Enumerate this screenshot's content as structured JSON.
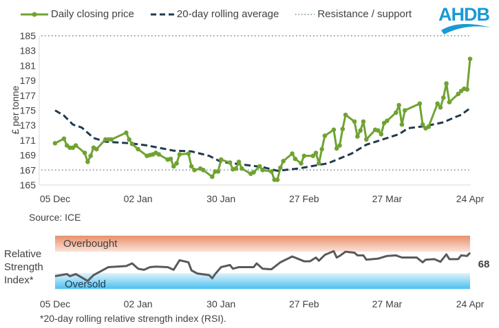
{
  "legend": {
    "price": "Daily closing price",
    "average": "20-day rolling average",
    "guide": "Resistance / support"
  },
  "logo": "AHDB",
  "colors": {
    "price": "#70a232",
    "average": "#1f3a4d",
    "guide": "#8aa0aa",
    "rsi": "#595959",
    "overbought": "#e8906a",
    "oversold": "#4cc0f0"
  },
  "chart_data": [
    {
      "type": "line",
      "ylabel": "£ per tonne",
      "ylim": [
        165,
        185
      ],
      "yticks": [
        165,
        167,
        169,
        171,
        173,
        175,
        177,
        179,
        181,
        183,
        185
      ],
      "xticks": [
        "05 Dec",
        "02 Jan",
        "30 Jan",
        "27 Feb",
        "27 Mar",
        "24 Apr"
      ],
      "source": "Source: ICE",
      "grid": false,
      "legend_position": "top",
      "guides": [
        185,
        167
      ],
      "series": [
        {
          "name": "Daily closing price",
          "style": "solid-markers",
          "points": [
            [
              "05 Dec",
              170.6
            ],
            [
              "08 Dec",
              171.2
            ],
            [
              "09 Dec",
              170.3
            ],
            [
              "10 Dec",
              170.0
            ],
            [
              "11 Dec",
              170.0
            ],
            [
              "12 Dec",
              170.3
            ],
            [
              "15 Dec",
              169.3
            ],
            [
              "16 Dec",
              168.1
            ],
            [
              "17 Dec",
              168.9
            ],
            [
              "18 Dec",
              170.0
            ],
            [
              "19 Dec",
              169.8
            ],
            [
              "22 Dec",
              171.1
            ],
            [
              "23 Dec",
              171.1
            ],
            [
              "24 Dec",
              171.1
            ],
            [
              "29 Dec",
              172.0
            ],
            [
              "30 Dec",
              171.1
            ],
            [
              "31 Dec",
              170.5
            ],
            [
              "02 Jan",
              169.8
            ],
            [
              "05 Jan",
              168.9
            ],
            [
              "06 Jan",
              169.0
            ],
            [
              "07 Jan",
              169.1
            ],
            [
              "08 Jan",
              169.3
            ],
            [
              "09 Jan",
              169.1
            ],
            [
              "12 Jan",
              168.4
            ],
            [
              "13 Jan",
              168.5
            ],
            [
              "14 Jan",
              167.5
            ],
            [
              "15 Jan",
              167.9
            ],
            [
              "16 Jan",
              169.1
            ],
            [
              "19 Jan",
              169.2
            ],
            [
              "20 Jan",
              167.5
            ],
            [
              "21 Jan",
              167.0
            ],
            [
              "23 Jan",
              167.2
            ],
            [
              "24 Jan",
              167.0
            ],
            [
              "27 Jan",
              166.1
            ],
            [
              "28 Jan",
              166.8
            ],
            [
              "29 Jan",
              166.8
            ],
            [
              "30 Jan",
              168.4
            ],
            [
              "02 Feb",
              168.0
            ],
            [
              "03 Feb",
              167.1
            ],
            [
              "04 Feb",
              167.2
            ],
            [
              "05 Feb",
              168.1
            ],
            [
              "06 Feb",
              167.2
            ],
            [
              "09 Feb",
              166.5
            ],
            [
              "10 Feb",
              166.7
            ],
            [
              "12 Feb",
              167.5
            ],
            [
              "13 Feb",
              167.0
            ],
            [
              "16 Feb",
              166.8
            ],
            [
              "17 Feb",
              165.7
            ],
            [
              "18 Feb",
              165.7
            ],
            [
              "19 Feb",
              167.3
            ],
            [
              "20 Feb",
              168.2
            ],
            [
              "23 Feb",
              169.2
            ],
            [
              "24 Feb",
              168.5
            ],
            [
              "26 Feb",
              167.9
            ],
            [
              "27 Feb",
              168.9
            ],
            [
              "02 Mar",
              168.9
            ],
            [
              "03 Mar",
              169.3
            ],
            [
              "04 Mar",
              167.9
            ],
            [
              "05 Mar",
              169.8
            ],
            [
              "06 Mar",
              171.6
            ],
            [
              "09 Mar",
              172.4
            ],
            [
              "10 Mar",
              169.9
            ],
            [
              "11 Mar",
              170.3
            ],
            [
              "12 Mar",
              172.5
            ],
            [
              "13 Mar",
              174.4
            ],
            [
              "16 Mar",
              173.5
            ],
            [
              "17 Mar",
              171.5
            ],
            [
              "18 Mar",
              172.3
            ],
            [
              "19 Mar",
              173.5
            ],
            [
              "20 Mar",
              171.1
            ],
            [
              "23 Mar",
              172.4
            ],
            [
              "24 Mar",
              172.3
            ],
            [
              "25 Mar",
              171.8
            ],
            [
              "26 Mar",
              173.3
            ],
            [
              "27 Mar",
              173.6
            ],
            [
              "30 Mar",
              174.7
            ],
            [
              "31 Mar",
              175.7
            ],
            [
              "01 Apr",
              173.1
            ],
            [
              "02 Apr",
              175.0
            ],
            [
              "07 Apr",
              175.9
            ],
            [
              "08 Apr",
              173.1
            ],
            [
              "09 Apr",
              172.6
            ],
            [
              "10 Apr",
              172.8
            ],
            [
              "13 Apr",
              175.9
            ],
            [
              "14 Apr",
              175.4
            ],
            [
              "15 Apr",
              176.7
            ],
            [
              "16 Apr",
              178.6
            ],
            [
              "17 Apr",
              176.1
            ],
            [
              "20 Apr",
              177.2
            ],
            [
              "21 Apr",
              177.6
            ],
            [
              "22 Apr",
              177.9
            ],
            [
              "23 Apr",
              177.8
            ],
            [
              "24 Apr",
              181.9
            ]
          ]
        },
        {
          "name": "20-day rolling average",
          "style": "dashed",
          "points": [
            [
              "05 Dec",
              175.0
            ],
            [
              "08 Dec",
              174.3
            ],
            [
              "11 Dec",
              173.1
            ],
            [
              "14 Dec",
              172.7
            ],
            [
              "18 Dec",
              171.3
            ],
            [
              "22 Dec",
              170.8
            ],
            [
              "30 Dec",
              170.6
            ],
            [
              "05 Jan",
              170.3
            ],
            [
              "14 Jan",
              169.6
            ],
            [
              "20 Jan",
              169.5
            ],
            [
              "26 Jan",
              168.9
            ],
            [
              "30 Jan",
              168.1
            ],
            [
              "07 Feb",
              167.7
            ],
            [
              "13 Feb",
              167.4
            ],
            [
              "18 Feb",
              166.9
            ],
            [
              "25 Feb",
              167.2
            ],
            [
              "07 Mar",
              167.9
            ],
            [
              "15 Mar",
              169.2
            ],
            [
              "20 Mar",
              170.4
            ],
            [
              "31 Mar",
              171.8
            ],
            [
              "03 Apr",
              172.6
            ],
            [
              "09 Apr",
              172.9
            ],
            [
              "15 Apr",
              173.4
            ],
            [
              "19 Apr",
              174.1
            ],
            [
              "21 Apr",
              174.4
            ],
            [
              "24 Apr",
              175.3
            ]
          ]
        }
      ]
    },
    {
      "type": "line",
      "ylabel": "Relative Strength Index*",
      "ylim": [
        0,
        100
      ],
      "xticks": [
        "05 Dec",
        "02 Jan",
        "30 Jan",
        "27 Feb",
        "27 Mar",
        "24 Apr"
      ],
      "bands": [
        {
          "label": "Overbought",
          "from": 70,
          "to": 100
        },
        {
          "label": "Oversold",
          "from": 0,
          "to": 30
        }
      ],
      "last_value_label": "68",
      "footnote": "*20-day rolling relative strength index (RSI).",
      "series": [
        {
          "points": [
            [
              "05 Dec",
              24
            ],
            [
              "09 Dec",
              28
            ],
            [
              "10 Dec",
              24
            ],
            [
              "12 Dec",
              28
            ],
            [
              "16 Dec",
              15
            ],
            [
              "18 Dec",
              26
            ],
            [
              "23 Dec",
              41
            ],
            [
              "29 Dec",
              43
            ],
            [
              "31 Dec",
              48
            ],
            [
              "02 Jan",
              38
            ],
            [
              "04 Jan",
              36
            ],
            [
              "06 Jan",
              41
            ],
            [
              "08 Jan",
              42
            ],
            [
              "12 Jan",
              41
            ],
            [
              "14 Jan",
              36
            ],
            [
              "16 Jan",
              54
            ],
            [
              "19 Jan",
              50
            ],
            [
              "20 Jan",
              35
            ],
            [
              "22 Jan",
              29
            ],
            [
              "26 Jan",
              26
            ],
            [
              "27 Jan",
              20
            ],
            [
              "28 Jan",
              28
            ],
            [
              "30 Jan",
              41
            ],
            [
              "02 Feb",
              45
            ],
            [
              "03 Feb",
              38
            ],
            [
              "05 Feb",
              41
            ],
            [
              "10 Feb",
              41
            ],
            [
              "11 Feb",
              48
            ],
            [
              "13 Feb",
              38
            ],
            [
              "16 Feb",
              37
            ],
            [
              "19 Feb",
              50
            ],
            [
              "23 Feb",
              61
            ],
            [
              "27 Feb",
              52
            ],
            [
              "01 Mar",
              52
            ],
            [
              "03 Mar",
              59
            ],
            [
              "04 Mar",
              53
            ],
            [
              "06 Mar",
              64
            ],
            [
              "09 Mar",
              71
            ],
            [
              "10 Mar",
              59
            ],
            [
              "11 Mar",
              62
            ],
            [
              "13 Mar",
              70
            ],
            [
              "16 Mar",
              68
            ],
            [
              "17 Mar",
              63
            ],
            [
              "19 Mar",
              63
            ],
            [
              "20 Mar",
              55
            ],
            [
              "24 Mar",
              57
            ],
            [
              "27 Mar",
              62
            ],
            [
              "30 Mar",
              63
            ],
            [
              "01 Apr",
              59
            ],
            [
              "06 Apr",
              59
            ],
            [
              "08 Apr",
              50
            ],
            [
              "09 Apr",
              55
            ],
            [
              "12 Apr",
              56
            ],
            [
              "14 Apr",
              51
            ],
            [
              "16 Apr",
              65
            ],
            [
              "17 Apr",
              56
            ],
            [
              "20 Apr",
              56
            ],
            [
              "21 Apr",
              63
            ],
            [
              "23 Apr",
              62
            ],
            [
              "24 Apr",
              68
            ]
          ]
        }
      ]
    }
  ]
}
